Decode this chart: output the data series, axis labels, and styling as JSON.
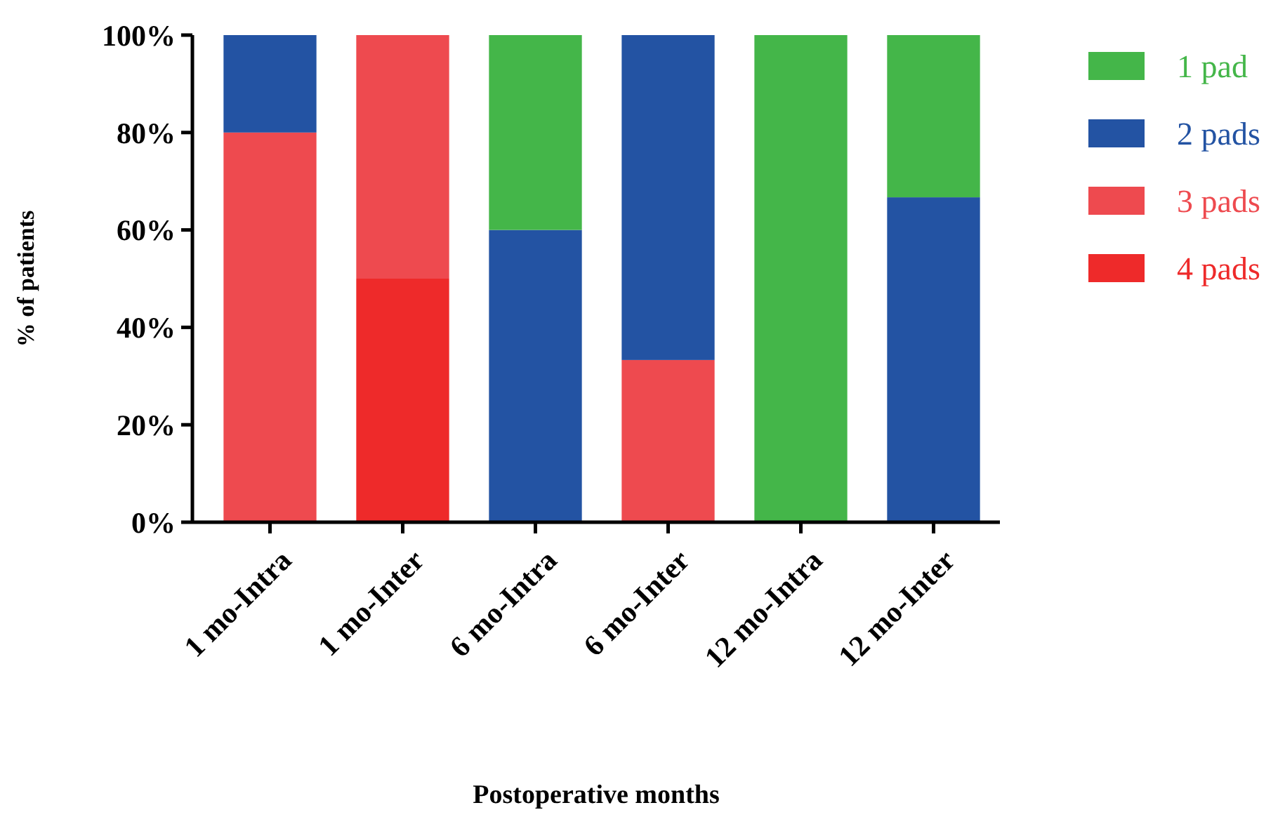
{
  "chart_data": {
    "type": "bar",
    "stacked": true,
    "xlabel": "Postoperative months",
    "ylabel": "% of patients",
    "categories": [
      "1 mo-Intra",
      "1 mo-Inter",
      "6 mo-Intra",
      "6 mo-Inter",
      "12 mo-Intra",
      "12 mo-Inter"
    ],
    "series": [
      {
        "name": "4 pads",
        "color": "#ee2a2a",
        "values": [
          0,
          50,
          0,
          0,
          0,
          0
        ]
      },
      {
        "name": "3 pads",
        "color": "#ee4a4f",
        "values": [
          80,
          50,
          0,
          33.3,
          0,
          0
        ]
      },
      {
        "name": "2 pads",
        "color": "#2353a3",
        "values": [
          20,
          0,
          60,
          66.7,
          0,
          66.7
        ]
      },
      {
        "name": "1 pad",
        "color": "#44b649",
        "values": [
          0,
          0,
          40,
          0,
          100,
          33.3
        ]
      }
    ],
    "ylim": [
      0,
      100
    ],
    "yticks": [
      {
        "value": 0,
        "label": "0%"
      },
      {
        "value": 20,
        "label": "20%"
      },
      {
        "value": 40,
        "label": "40%"
      },
      {
        "value": 60,
        "label": "60%"
      },
      {
        "value": 80,
        "label": "80%"
      },
      {
        "value": 100,
        "label": "100%"
      }
    ],
    "grid": false,
    "legend": "right"
  }
}
